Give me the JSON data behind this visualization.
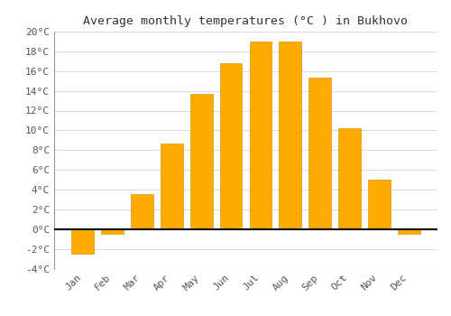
{
  "title": "Average monthly temperatures (°C ) in Bukhovo",
  "months": [
    "Jan",
    "Feb",
    "Mar",
    "Apr",
    "May",
    "Jun",
    "Jul",
    "Aug",
    "Sep",
    "Oct",
    "Nov",
    "Dec"
  ],
  "values": [
    -2.5,
    -0.5,
    3.5,
    8.7,
    13.7,
    16.8,
    19.0,
    19.0,
    15.3,
    10.2,
    5.0,
    -0.5
  ],
  "bar_color": "#FFAA00",
  "bar_edge_color": "#CC8800",
  "ylim": [
    -4,
    20
  ],
  "yticks": [
    -4,
    -2,
    0,
    2,
    4,
    6,
    8,
    10,
    12,
    14,
    16,
    18,
    20
  ],
  "ytick_labels": [
    "-4°C",
    "-2°C",
    "0°C",
    "2°C",
    "4°C",
    "6°C",
    "8°C",
    "10°C",
    "12°C",
    "14°C",
    "16°C",
    "18°C",
    "20°C"
  ],
  "background_color": "#ffffff",
  "grid_color": "#dddddd",
  "title_fontsize": 9.5,
  "tick_fontsize": 8,
  "zero_line_color": "#000000",
  "spine_color": "#999999"
}
